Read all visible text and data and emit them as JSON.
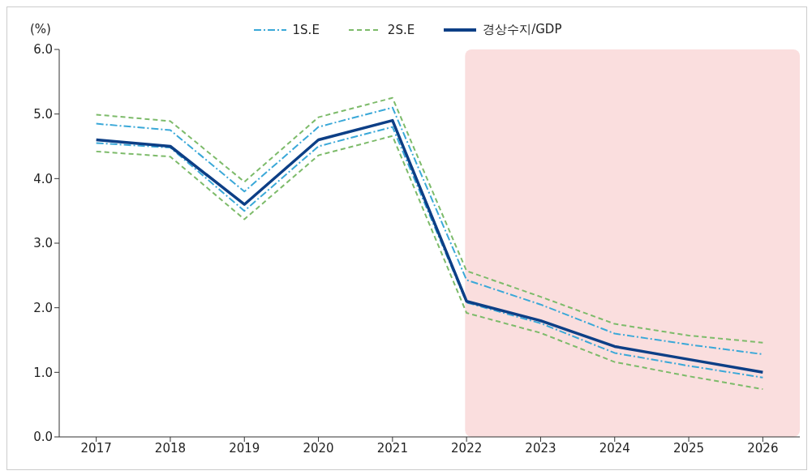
{
  "chart_data": {
    "type": "line",
    "ylabel": "(%)",
    "categories": [
      "2017",
      "2018",
      "2019",
      "2020",
      "2021",
      "2022",
      "2023",
      "2024",
      "2025",
      "2026"
    ],
    "series": [
      {
        "name": "1S.E",
        "color": "#3aa8d8",
        "line_style": "dashdot",
        "values": [
          4.85,
          4.75,
          3.8,
          4.8,
          5.1,
          2.43,
          2.05,
          1.6,
          1.43,
          1.28
        ]
      },
      {
        "color": "#3aa8d8",
        "line_style": "dashdot",
        "values": [
          4.55,
          4.48,
          3.5,
          4.5,
          4.8,
          2.08,
          1.76,
          1.3,
          1.1,
          0.92
        ]
      },
      {
        "name": "2S.E",
        "color": "#7dbb6a",
        "line_style": "dashed",
        "values": [
          4.99,
          4.89,
          3.95,
          4.95,
          5.25,
          2.57,
          2.17,
          1.75,
          1.57,
          1.46
        ]
      },
      {
        "color": "#7dbb6a",
        "line_style": "dashed",
        "values": [
          4.42,
          4.34,
          3.37,
          4.36,
          4.66,
          1.92,
          1.61,
          1.16,
          0.94,
          0.74
        ]
      },
      {
        "name": "경상수지/GDP",
        "color": "#0d3f86",
        "line_style": "solid",
        "values": [
          4.6,
          4.5,
          3.6,
          4.6,
          4.9,
          2.1,
          1.8,
          1.4,
          1.2,
          1.0
        ]
      }
    ],
    "ylim": [
      0,
      6
    ],
    "yticks": [
      {
        "value": 0,
        "label": "0.0"
      },
      {
        "value": 1,
        "label": "1.0"
      },
      {
        "value": 2,
        "label": "2.0"
      },
      {
        "value": 3,
        "label": "3.0"
      },
      {
        "value": 4,
        "label": "4.0"
      },
      {
        "value": 5,
        "label": "5.0"
      },
      {
        "value": 6,
        "label": "6.0"
      }
    ],
    "bands": [
      {
        "axis": "x",
        "from": "2022",
        "to": "2026",
        "color": "#fadede"
      }
    ],
    "grid": false,
    "legend": "top",
    "marker": "none"
  }
}
